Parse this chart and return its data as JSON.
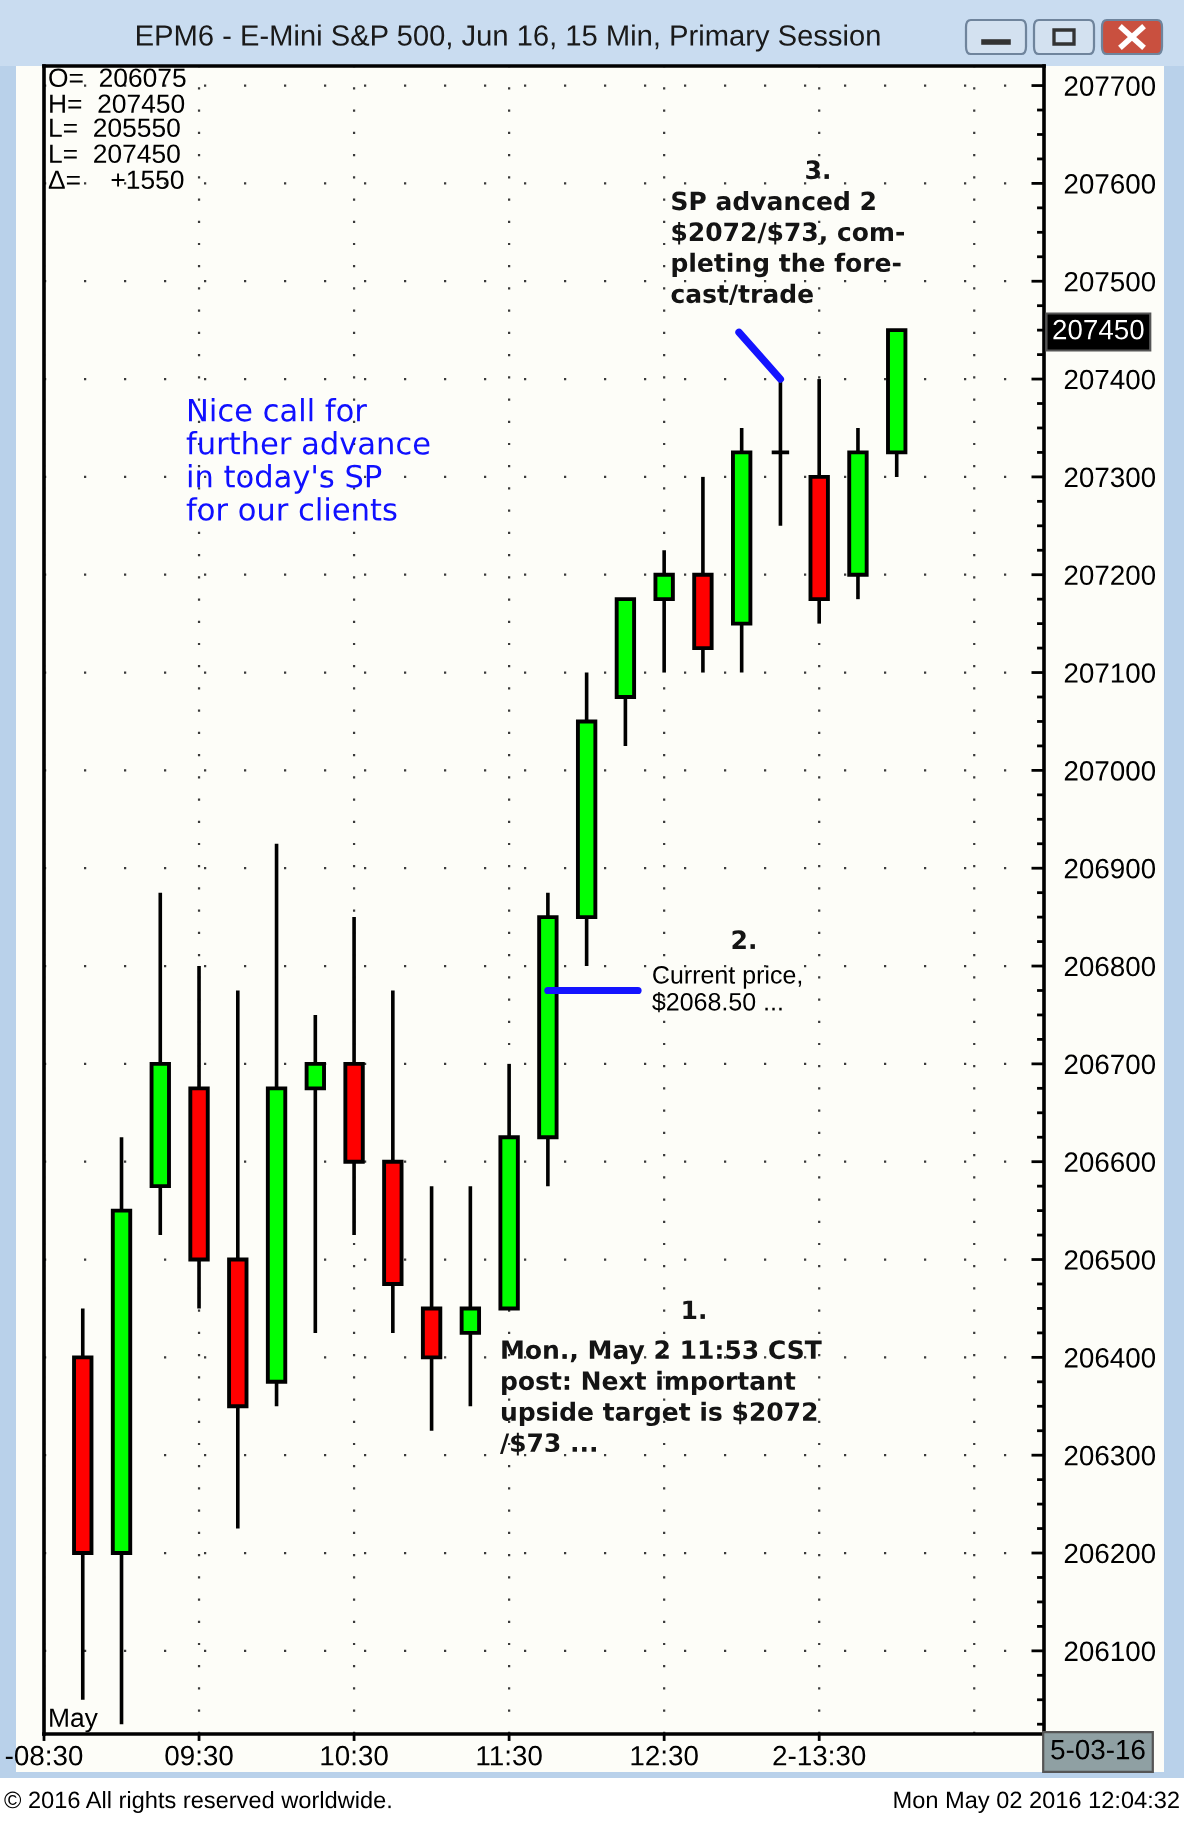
{
  "chart_data": {
    "type": "candlestick",
    "title": "EPM6 - E-Mini S&P 500, Jun 16, 15 Min, Primary Session",
    "x": [
      8.75,
      9.0,
      9.25,
      9.5,
      9.75,
      10.0,
      10.25,
      10.5,
      10.75,
      11.0,
      11.25,
      11.5,
      11.75,
      12.0,
      12.25,
      12.5,
      12.75,
      13.0,
      13.25,
      13.5,
      13.75,
      14.0
    ],
    "ohlc": [
      [
        206400,
        206450,
        206050,
        206200
      ],
      [
        206200,
        206625,
        206025,
        206550
      ],
      [
        206575,
        206875,
        206525,
        206700
      ],
      [
        206675,
        206800,
        206450,
        206500
      ],
      [
        206500,
        206775,
        206225,
        206350
      ],
      [
        206375,
        206925,
        206350,
        206675
      ],
      [
        206675,
        206750,
        206425,
        206700
      ],
      [
        206700,
        206850,
        206525,
        206600
      ],
      [
        206600,
        206775,
        206425,
        206475
      ],
      [
        206450,
        206575,
        206325,
        206400
      ],
      [
        206425,
        206575,
        206350,
        206450
      ],
      [
        206450,
        206700,
        206450,
        206625
      ],
      [
        206625,
        206875,
        206575,
        206850
      ],
      [
        206850,
        207100,
        206800,
        207050
      ],
      [
        207075,
        207175,
        207025,
        207175
      ],
      [
        207175,
        207225,
        207100,
        207200
      ],
      [
        207200,
        207300,
        207100,
        207125
      ],
      [
        207150,
        207350,
        207100,
        207325
      ],
      [
        207325,
        207400,
        207250,
        207325
      ],
      [
        207300,
        207400,
        207150,
        207175
      ],
      [
        207200,
        207350,
        207175,
        207325
      ],
      [
        207325,
        207450,
        207300,
        207450
      ]
    ],
    "colors": [
      "#ff0000",
      "#00ff00",
      "#00ff00",
      "#ff0000",
      "#ff0000",
      "#00ff00",
      "#00ff00",
      "#ff0000",
      "#ff0000",
      "#ff0000",
      "#00ff00",
      "#00ff00",
      "#00ff00",
      "#00ff00",
      "#00ff00",
      "#00ff00",
      "#ff0000",
      "#00ff00",
      "#000000",
      "#ff0000",
      "#00ff00",
      "#00ff00"
    ],
    "xlim": [
      8.5,
      14.95
    ],
    "xticks": [
      {
        "value": 8.5,
        "label": "-08:30"
      },
      {
        "value": 9.5,
        "label": "09:30"
      },
      {
        "value": 10.5,
        "label": "10:30"
      },
      {
        "value": 11.5,
        "label": "11:30"
      },
      {
        "value": 12.5,
        "label": "12:30"
      },
      {
        "value": 13.5,
        "label": "2-13:30"
      },
      {
        "value": 14.5,
        "label": null
      }
    ],
    "ylim": [
      206015,
      207720
    ],
    "yticks": [
      206100,
      206200,
      206300,
      206400,
      206500,
      206600,
      206700,
      206800,
      206900,
      207000,
      207100,
      207200,
      207300,
      207400,
      207500,
      207600,
      207700,
      {
        "value": 206025,
        "label": null
      },
      {
        "value": 206050,
        "label": null
      },
      {
        "value": 206075,
        "label": null
      },
      {
        "value": 206125,
        "label": null
      },
      {
        "value": 206150,
        "label": null
      },
      {
        "value": 206175,
        "label": null
      },
      {
        "value": 206225,
        "label": null
      },
      {
        "value": 206250,
        "label": null
      },
      {
        "value": 206275,
        "label": null
      },
      {
        "value": 206325,
        "label": null
      },
      {
        "value": 206350,
        "label": null
      },
      {
        "value": 206375,
        "label": null
      },
      {
        "value": 206425,
        "label": null
      },
      {
        "value": 206450,
        "label": null
      },
      {
        "value": 206475,
        "label": null
      },
      {
        "value": 206525,
        "label": null
      },
      {
        "value": 206550,
        "label": null
      },
      {
        "value": 206575,
        "label": null
      },
      {
        "value": 206625,
        "label": null
      },
      {
        "value": 206650,
        "label": null
      },
      {
        "value": 206675,
        "label": null
      },
      {
        "value": 206725,
        "label": null
      },
      {
        "value": 206750,
        "label": null
      },
      {
        "value": 206775,
        "label": null
      },
      {
        "value": 206825,
        "label": null
      },
      {
        "value": 206850,
        "label": null
      },
      {
        "value": 206875,
        "label": null
      },
      {
        "value": 206925,
        "label": null
      },
      {
        "value": 206950,
        "label": null
      },
      {
        "value": 206975,
        "label": null
      },
      {
        "value": 207025,
        "label": null
      },
      {
        "value": 207050,
        "label": null
      },
      {
        "value": 207075,
        "label": null
      },
      {
        "value": 207125,
        "label": null
      },
      {
        "value": 207150,
        "label": null
      },
      {
        "value": 207175,
        "label": null
      },
      {
        "value": 207225,
        "label": null
      },
      {
        "value": 207250,
        "label": null
      },
      {
        "value": 207275,
        "label": null
      },
      {
        "value": 207325,
        "label": null
      },
      {
        "value": 207350,
        "label": null
      },
      {
        "value": 207375,
        "label": null
      },
      {
        "value": 207425,
        "label": null
      },
      {
        "value": 207450,
        "label": null
      },
      {
        "value": 207475,
        "label": null
      },
      {
        "value": 207525,
        "label": null
      },
      {
        "value": 207550,
        "label": null
      },
      {
        "value": 207575,
        "label": null
      },
      {
        "value": 207625,
        "label": null
      },
      {
        "value": 207650,
        "label": null
      },
      {
        "value": 207675,
        "label": null
      }
    ],
    "grid": true,
    "annotations": [
      "O=  206075",
      "H=  207450",
      "L=  205550",
      "L=  207450",
      "Δ=    +1550",
      "Nice call for\nfurther advance\nin today's SP\nfor our clients",
      "1.",
      "Mon., May 2 11:53 CST\npost: Next important\nupside target is $2072\n/$73 ...",
      "2.",
      {
        "text": "Current price,\n$2068.50 ...",
        "x": 11.75,
        "y": 206775
      },
      "3.",
      {
        "text": "SP advanced 2\n$2072/$73, com-\npleting the fore-\ncast/trade",
        "x": 13.25,
        "y": 207400
      },
      "207450",
      "May",
      "5-03-16",
      "© 2016 All rights reserved worldwide.",
      "Mon May 02 2016 12:04:32"
    ]
  }
}
